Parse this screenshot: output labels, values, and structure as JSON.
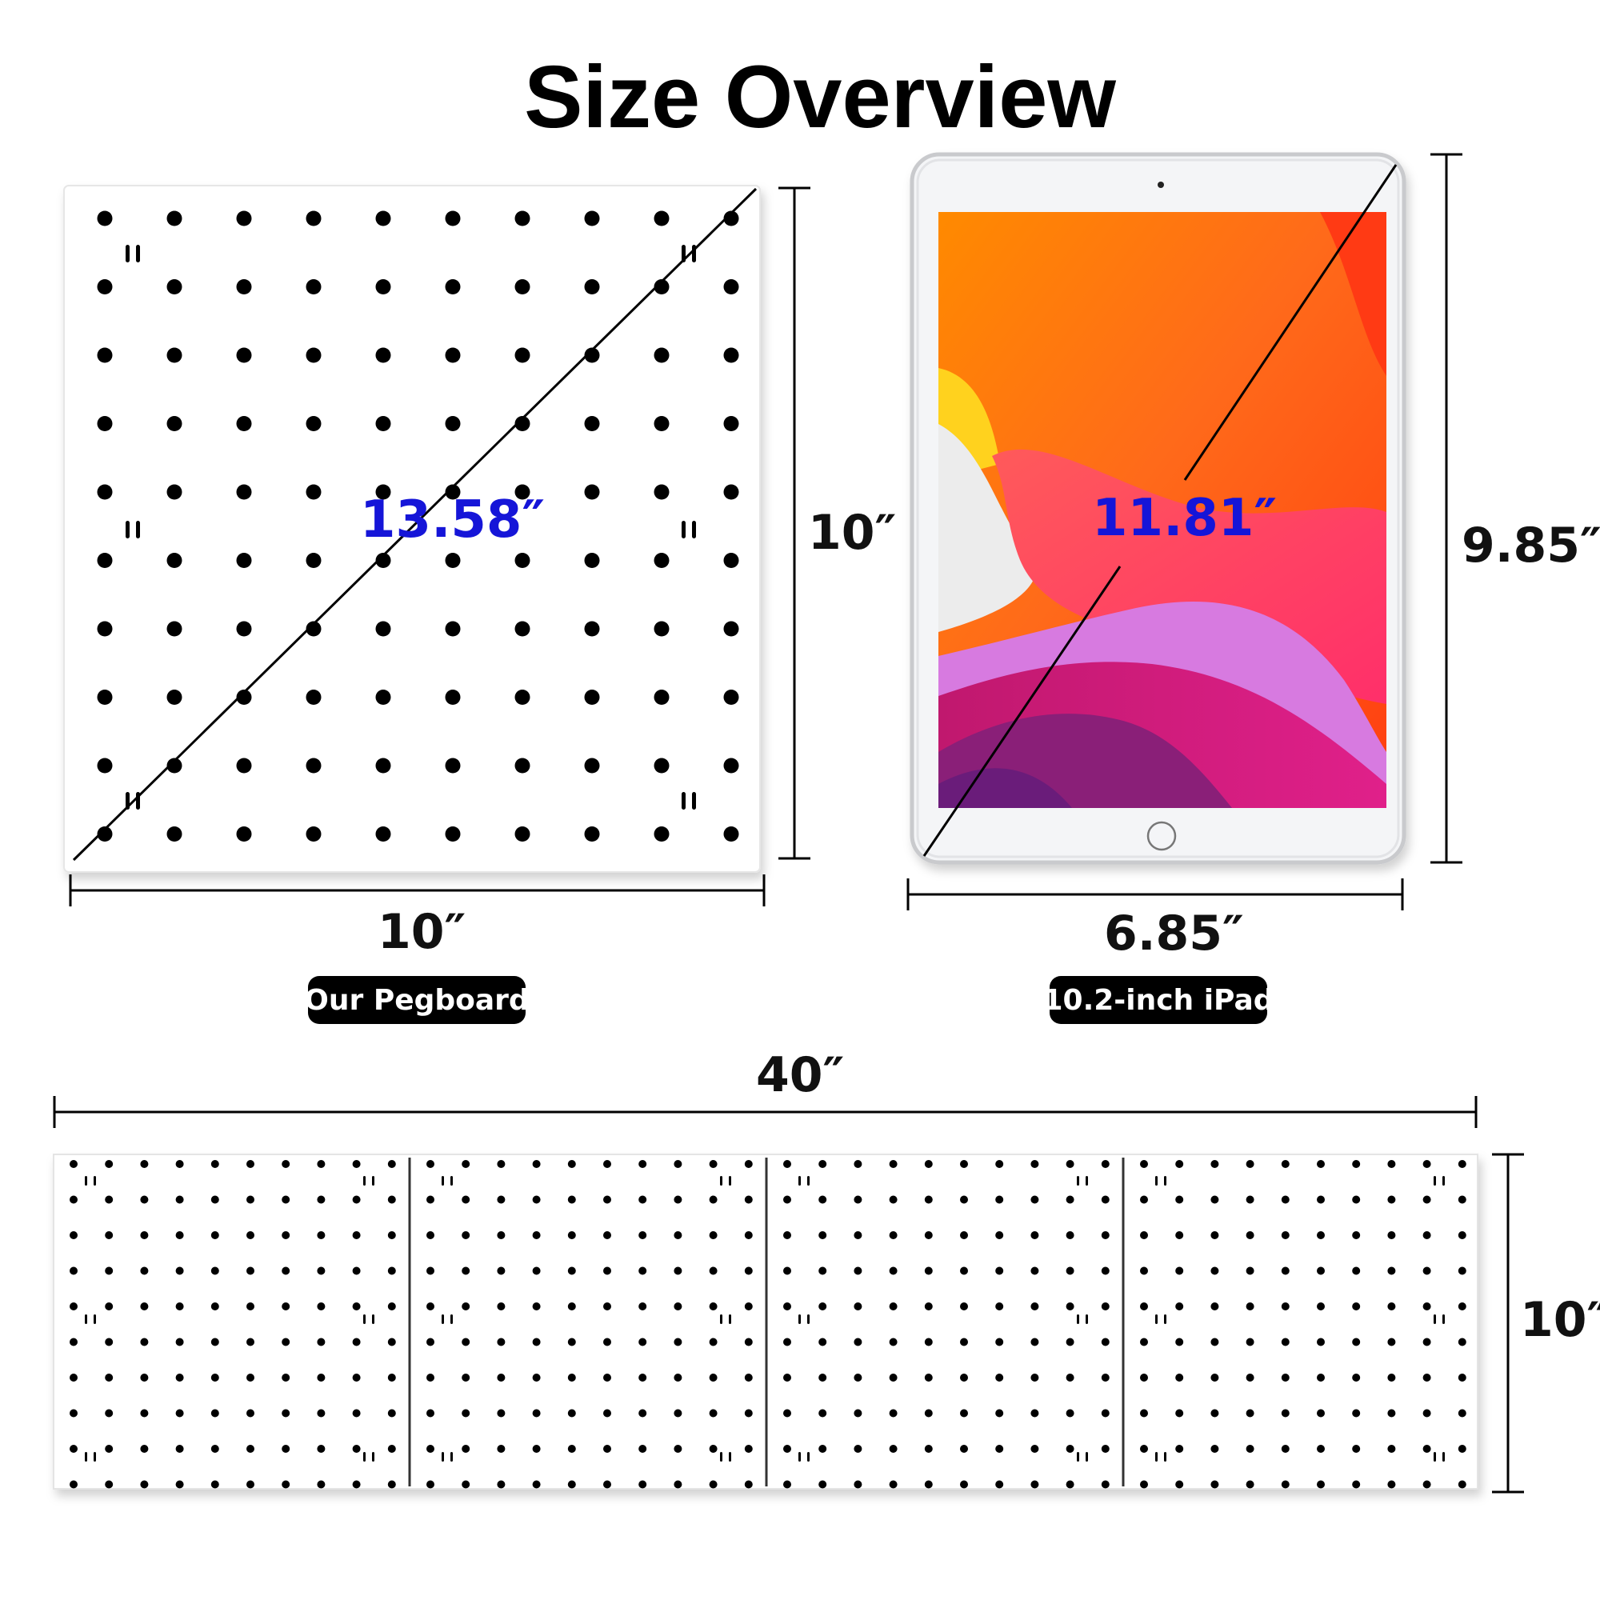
{
  "title": "Size Overview",
  "pegboard": {
    "diagonal": "13.58″",
    "height": "10″",
    "width": "10″",
    "label": "Our Pegboard"
  },
  "ipad": {
    "diagonal": "11.81″",
    "height": "9.85″",
    "width": "6.85″",
    "label": "10.2-inch  iPad"
  },
  "combined": {
    "width": "40″",
    "height": "10″"
  },
  "colors": {
    "diagonal_text": "#1515d8",
    "pill_bg": "#000000",
    "wallpaper": [
      "#ff7a00",
      "#ff3d59",
      "#c31c8a",
      "#7a1d8d"
    ]
  }
}
